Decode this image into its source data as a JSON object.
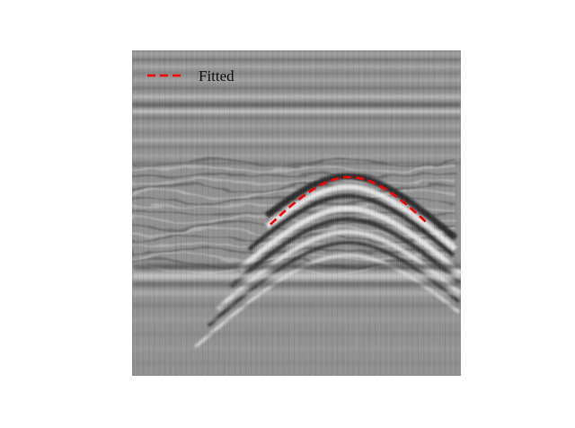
{
  "legend": {
    "entries": [
      {
        "label": "Fitted",
        "color": "#ff0000",
        "style": "dashed"
      }
    ]
  },
  "image": {
    "description_kind": "grayscale radargram with hyperbolic reflection",
    "colormap": "gray"
  }
}
